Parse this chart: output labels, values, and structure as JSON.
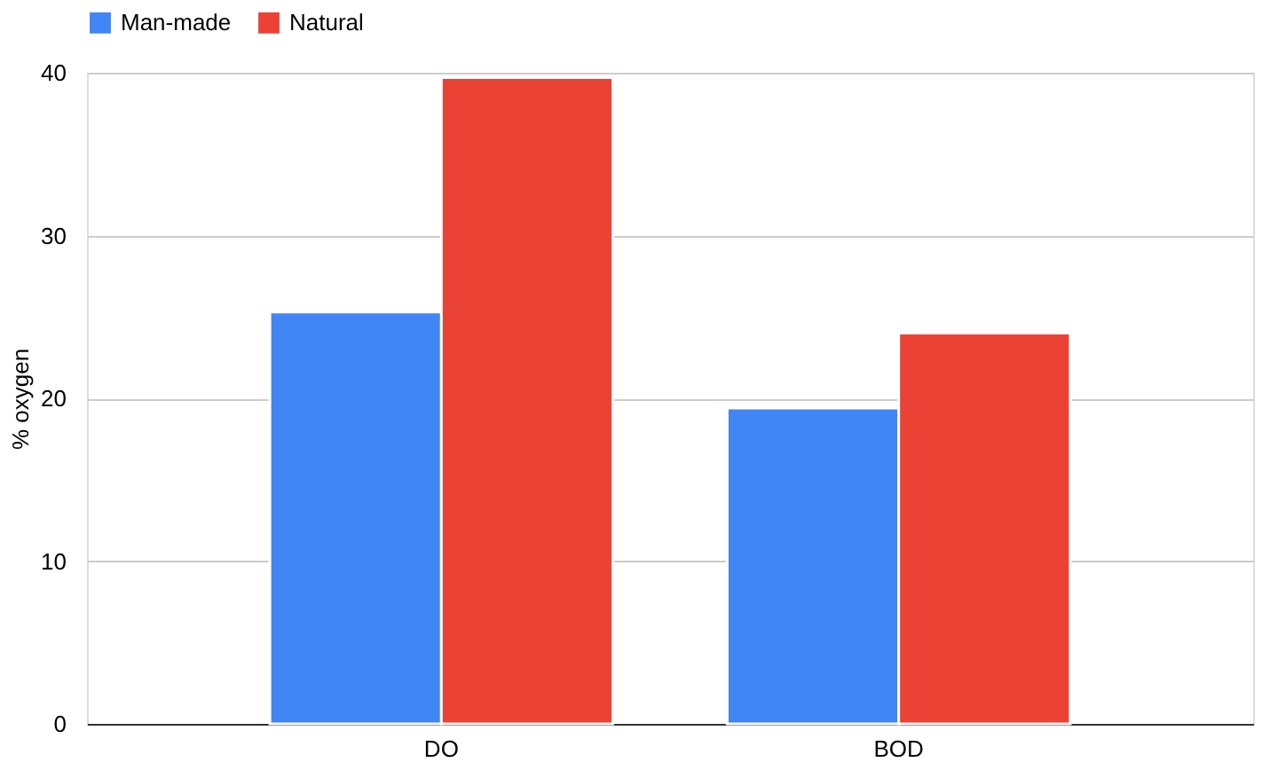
{
  "chart_data": {
    "type": "bar",
    "ylabel": "% oxygen",
    "categories": [
      "DO",
      "BOD"
    ],
    "series": [
      {
        "name": "Man-made",
        "color": "#4285f4",
        "values": [
          25.3,
          19.4
        ]
      },
      {
        "name": "Natural",
        "color": "#ea4335",
        "values": [
          39.7,
          24.0
        ]
      }
    ],
    "ylim": [
      0,
      40
    ],
    "yticks": [
      0,
      10,
      20,
      30,
      40
    ],
    "grid": "y",
    "legend": "top"
  }
}
